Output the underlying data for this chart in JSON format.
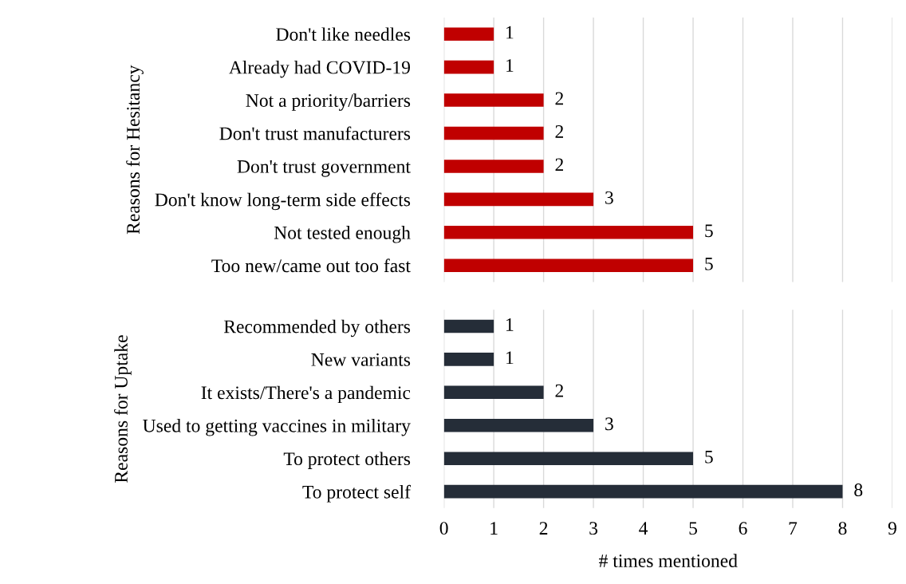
{
  "chart_data": [
    {
      "type": "bar",
      "orientation": "horizontal",
      "ylabel": "Reasons for Hesitancy",
      "categories": [
        "Don't like needles",
        "Already had COVID-19",
        "Not a priority/barriers",
        "Don't trust manufacturers",
        "Don't trust government",
        "Don't know long-term side effects",
        "Not tested enough",
        "Too new/came out too fast"
      ],
      "values": [
        1,
        1,
        2,
        2,
        2,
        3,
        5,
        5
      ],
      "color": "#c00000",
      "xlim": [
        0,
        9
      ],
      "xticks": [
        0,
        1,
        2,
        3,
        4,
        5,
        6,
        7,
        8,
        9
      ],
      "grid": "x",
      "data_labels": true,
      "tick_labels": "y"
    },
    {
      "type": "bar",
      "orientation": "horizontal",
      "ylabel": "Reasons for Uptake",
      "xlabel": "# times mentioned",
      "categories": [
        "Recommended by others",
        "New variants",
        "It exists/There's a pandemic",
        "Used to getting vaccines in military",
        "To protect others",
        "To protect self"
      ],
      "values": [
        1,
        1,
        2,
        3,
        5,
        8
      ],
      "color": "#252d38",
      "xlim": [
        0,
        9
      ],
      "xticks": [
        0,
        1,
        2,
        3,
        4,
        5,
        6,
        7,
        8,
        9
      ],
      "grid": "x",
      "data_labels": true
    }
  ]
}
